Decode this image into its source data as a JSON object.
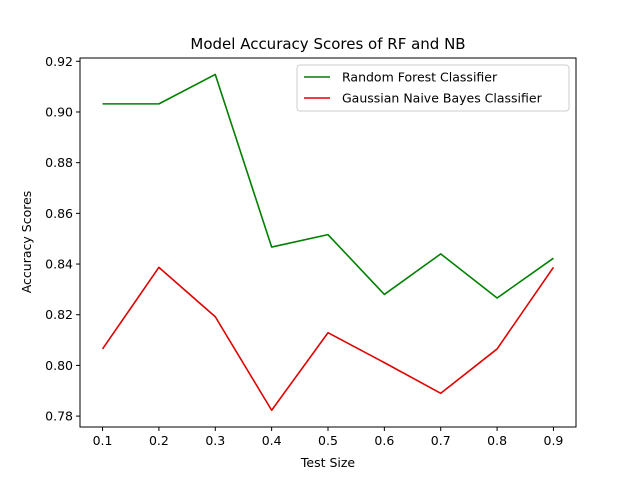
{
  "chart_data": {
    "type": "line",
    "title": "Model Accuracy Scores of RF and NB",
    "xlabel": "Test Size",
    "ylabel": "Accuracy Scores",
    "x": [
      0.1,
      0.2,
      0.3,
      0.4,
      0.5,
      0.6,
      0.7,
      0.8,
      0.9
    ],
    "xticks": [
      "0.1",
      "0.2",
      "0.3",
      "0.4",
      "0.5",
      "0.6",
      "0.7",
      "0.8",
      "0.9"
    ],
    "yticks": [
      "0.78",
      "0.80",
      "0.82",
      "0.84",
      "0.86",
      "0.88",
      "0.90",
      "0.92"
    ],
    "xlim": [
      0.06,
      0.94
    ],
    "ylim": [
      0.7757,
      0.9213
    ],
    "grid": false,
    "legend": "top-right",
    "series": [
      {
        "name": "Random Forest Classifier",
        "color": "#008000",
        "values": [
          0.9032,
          0.9032,
          0.9148,
          0.8467,
          0.8516,
          0.828,
          0.844,
          0.8266,
          0.8423
        ]
      },
      {
        "name": "Gaussian Naive Bayes Classifier",
        "color": "#e00000",
        "values": [
          0.8065,
          0.8387,
          0.8192,
          0.7823,
          0.8129,
          0.8011,
          0.789,
          0.8065,
          0.8387
        ]
      }
    ]
  }
}
